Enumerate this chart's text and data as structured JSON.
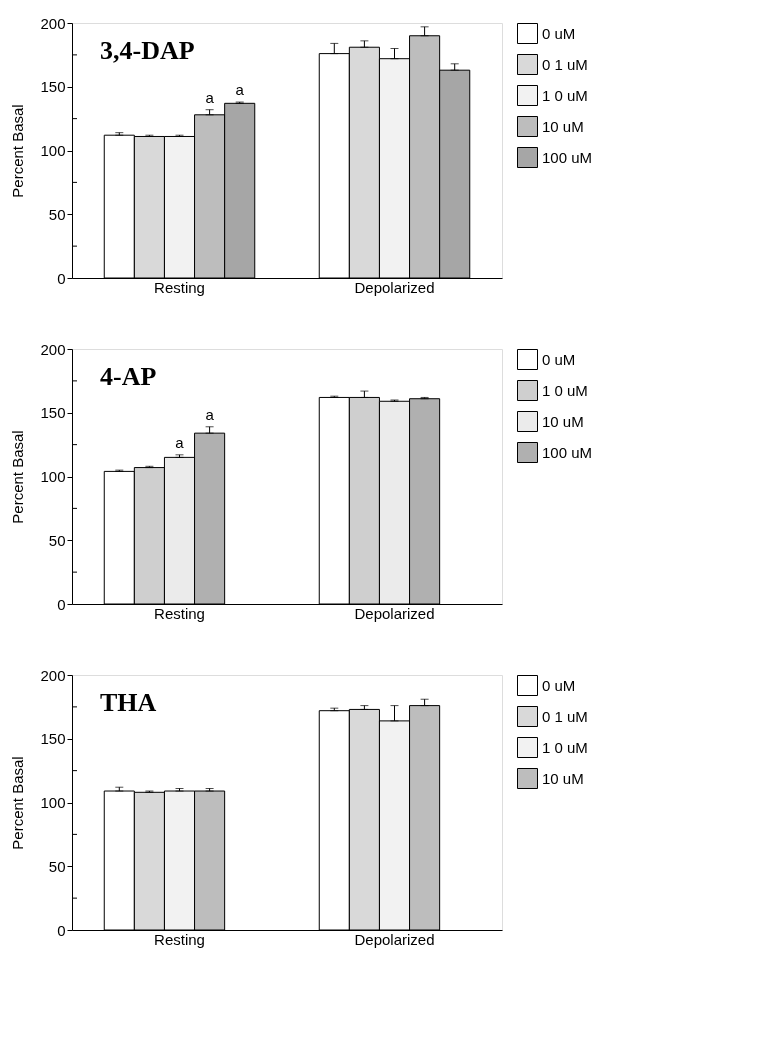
{
  "chart_data": [
    {
      "type": "bar",
      "title": "3,4-DAP",
      "ylabel": "Percent Basal",
      "categories": [
        "Resting",
        "Depolarized"
      ],
      "ylim": [
        0,
        200
      ],
      "yticks": [
        0,
        {
          "value": 25,
          "label": null
        },
        50,
        {
          "value": 75,
          "label": null
        },
        100,
        {
          "value": 125,
          "label": null
        },
        150,
        {
          "value": 175,
          "label": null
        },
        200
      ],
      "grid": false,
      "legend": "top right",
      "series": [
        {
          "name": "0 uM",
          "color": "#ffffff",
          "values": [
            112,
            176
          ],
          "errors": [
            [
              112,
              114
            ],
            [
              176,
              184
            ]
          ]
        },
        {
          "name": "0 1 uM",
          "color": "#d9d9d9",
          "values": [
            111,
            181
          ],
          "errors": [
            [
              111,
              112
            ],
            [
              181,
              186
            ]
          ]
        },
        {
          "name": "1 0 uM",
          "color": "#f2f2f2",
          "values": [
            111,
            172
          ],
          "errors": [
            [
              111,
              112
            ],
            [
              172,
              180
            ]
          ]
        },
        {
          "name": "10 uM",
          "color": "#bdbdbd",
          "values": [
            128,
            190
          ],
          "errors": [
            [
              128,
              132
            ],
            [
              190,
              197
            ]
          ],
          "value_labels": [
            "a",
            null
          ]
        },
        {
          "name": "100 uM",
          "color": "#a6a6a6",
          "values": [
            137,
            163
          ],
          "errors": [
            [
              137,
              138
            ],
            [
              163,
              168
            ]
          ],
          "value_labels": [
            "a",
            null
          ]
        }
      ]
    },
    {
      "type": "bar",
      "title": "4-AP",
      "ylabel": "Percent Basal",
      "categories": [
        "Resting",
        "Depolarized"
      ],
      "ylim": [
        0,
        200
      ],
      "yticks": [
        0,
        {
          "value": 25,
          "label": null
        },
        50,
        {
          "value": 75,
          "label": null
        },
        100,
        {
          "value": 125,
          "label": null
        },
        150,
        {
          "value": 175,
          "label": null
        },
        200
      ],
      "grid": false,
      "legend": "top right",
      "series": [
        {
          "name": "0 uM",
          "color": "#ffffff",
          "values": [
            104,
            162
          ],
          "errors": [
            [
              104,
              105
            ],
            [
              162,
              163
            ]
          ]
        },
        {
          "name": "1 0 uM",
          "color": "#cfcfcf",
          "values": [
            107,
            162
          ],
          "errors": [
            [
              107,
              108
            ],
            [
              162,
              167
            ]
          ]
        },
        {
          "name": "10 uM",
          "color": "#ebebeb",
          "values": [
            115,
            159
          ],
          "errors": [
            [
              115,
              117
            ],
            [
              159,
              160
            ]
          ],
          "value_labels": [
            "a",
            null
          ]
        },
        {
          "name": "100 uM",
          "color": "#b0b0b0",
          "values": [
            134,
            161
          ],
          "errors": [
            [
              134,
              139
            ],
            [
              161,
              162
            ]
          ],
          "value_labels": [
            "a",
            null
          ]
        }
      ]
    },
    {
      "type": "bar",
      "title": "THA",
      "ylabel": "Percent Basal",
      "categories": [
        "Resting",
        "Depolarized"
      ],
      "ylim": [
        0,
        200
      ],
      "yticks": [
        0,
        {
          "value": 25,
          "label": null
        },
        50,
        {
          "value": 75,
          "label": null
        },
        100,
        {
          "value": 125,
          "label": null
        },
        150,
        {
          "value": 175,
          "label": null
        },
        200
      ],
      "grid": false,
      "legend": "top right",
      "series": [
        {
          "name": "0 uM",
          "color": "#ffffff",
          "values": [
            109,
            172
          ],
          "errors": [
            [
              109,
              112
            ],
            [
              172,
              174
            ]
          ]
        },
        {
          "name": "0 1 uM",
          "color": "#d9d9d9",
          "values": [
            108,
            173
          ],
          "errors": [
            [
              108,
              109
            ],
            [
              173,
              176
            ]
          ]
        },
        {
          "name": "1 0 uM",
          "color": "#f2f2f2",
          "values": [
            109,
            164
          ],
          "errors": [
            [
              109,
              111
            ],
            [
              164,
              176
            ]
          ]
        },
        {
          "name": "10 uM",
          "color": "#bdbdbd",
          "values": [
            109,
            176
          ],
          "errors": [
            [
              109,
              111
            ],
            [
              176,
              181
            ]
          ]
        }
      ]
    }
  ]
}
